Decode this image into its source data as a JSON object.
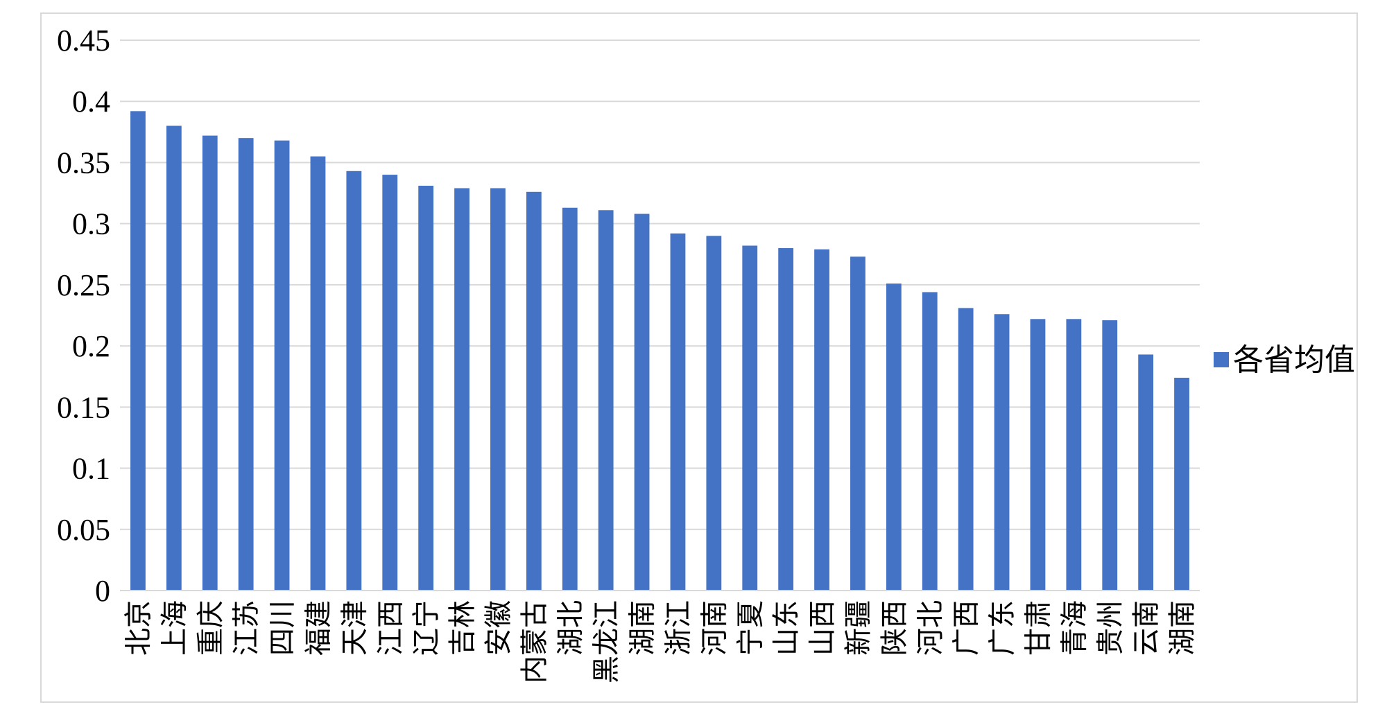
{
  "chart_data": {
    "type": "bar",
    "title": "",
    "xlabel": "",
    "ylabel": "",
    "ylim": [
      0,
      0.45
    ],
    "yticks": [
      0,
      0.05,
      0.1,
      0.15,
      0.2,
      0.25,
      0.3,
      0.35,
      0.4,
      0.45
    ],
    "ytick_labels": [
      "0",
      "0.05",
      "0.1",
      "0.15",
      "0.2",
      "0.25",
      "0.3",
      "0.35",
      "0.4",
      "0.45"
    ],
    "grid": true,
    "legend_position": "right",
    "categories": [
      "北京",
      "上海",
      "重庆",
      "江苏",
      "四川",
      "福建",
      "天津",
      "江西",
      "辽宁",
      "吉林",
      "安徽",
      "内蒙古",
      "湖北",
      "黑龙江",
      "湖南",
      "浙江",
      "河南",
      "宁夏",
      "山东",
      "山西",
      "新疆",
      "陕西",
      "河北",
      "广西",
      "广东",
      "甘肃",
      "青海",
      "贵州",
      "云南",
      "湖南"
    ],
    "series": [
      {
        "name": "各省均值",
        "color": "#4472C4",
        "values": [
          0.392,
          0.38,
          0.372,
          0.37,
          0.368,
          0.355,
          0.343,
          0.34,
          0.331,
          0.329,
          0.329,
          0.326,
          0.313,
          0.311,
          0.308,
          0.292,
          0.29,
          0.282,
          0.28,
          0.279,
          0.273,
          0.251,
          0.244,
          0.231,
          0.226,
          0.222,
          0.222,
          0.221,
          0.193,
          0.174
        ]
      }
    ]
  }
}
